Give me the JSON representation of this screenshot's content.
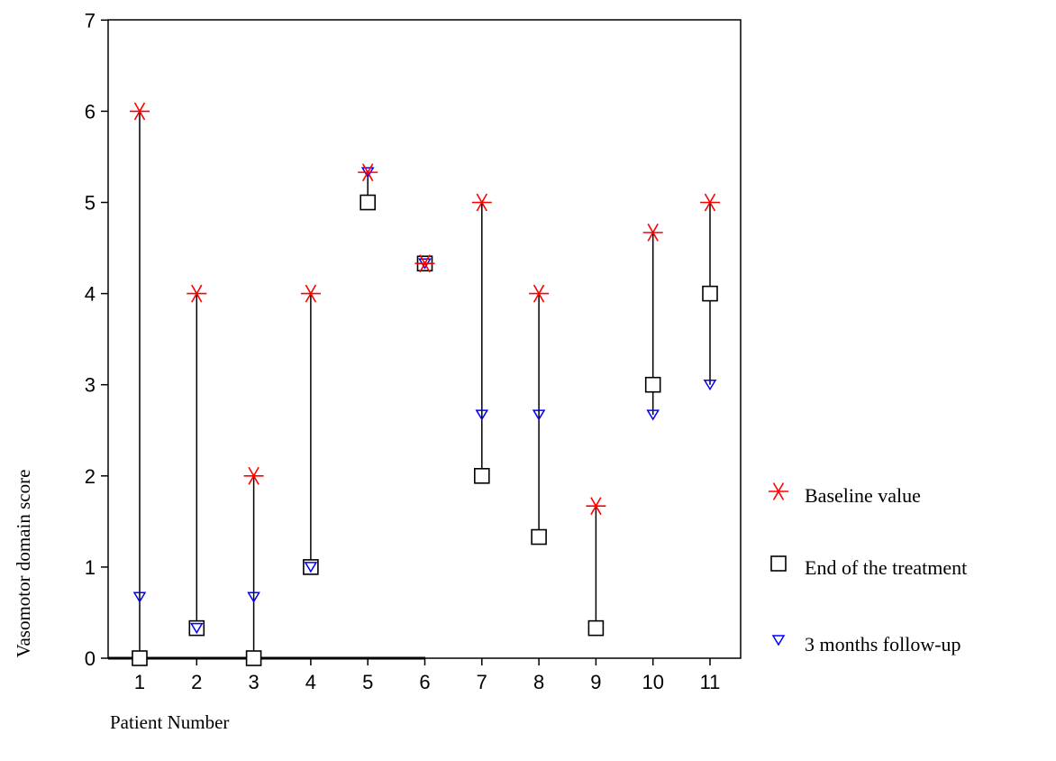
{
  "chart_data": {
    "type": "scatter",
    "xlabel": "Patient Number",
    "ylabel": "Vasomotor domain score",
    "categories": [
      "1",
      "2",
      "3",
      "4",
      "5",
      "6",
      "7",
      "8",
      "9",
      "10",
      "11"
    ],
    "y_ticks": [
      "0",
      "1",
      "2",
      "3",
      "4",
      "5",
      "6",
      "7"
    ],
    "ylim": [
      0,
      7
    ],
    "grid": false,
    "legend_position": "right",
    "series": [
      {
        "name": "Baseline value",
        "marker": "asterisk",
        "color": "#ff0000",
        "values": [
          6,
          4,
          2,
          4,
          5.33,
          4.33,
          5,
          4,
          1.67,
          4.67,
          5
        ]
      },
      {
        "name": "End of the treatment",
        "marker": "square",
        "color": "#000000",
        "values": [
          0,
          0.33,
          0,
          1,
          5,
          4.33,
          2,
          1.33,
          0.33,
          3,
          4
        ]
      },
      {
        "name": "3 months follow-up",
        "marker": "triangle-down",
        "color": "#0000ff",
        "values": [
          0.67,
          0.33,
          0.67,
          1,
          5.33,
          4.33,
          2.67,
          2.67,
          null,
          2.67,
          3
        ]
      }
    ]
  }
}
